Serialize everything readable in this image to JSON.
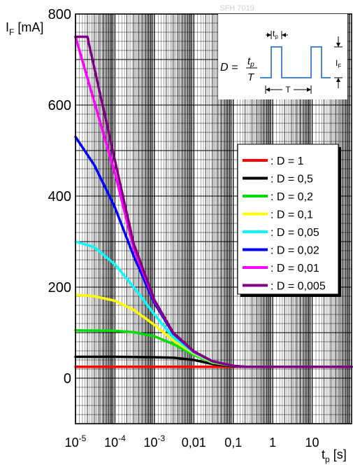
{
  "chart_data": {
    "type": "line",
    "watermark": "SFH 7019",
    "ylabel": {
      "main": "I",
      "sub": "F",
      "unit": " [mA]"
    },
    "xlabel": {
      "main": "t",
      "sub": "p",
      "unit": " [s]"
    },
    "x_scale": "log",
    "xlim": [
      1e-05,
      100
    ],
    "ylim": [
      -100,
      800
    ],
    "y_ticks": [
      "0",
      "200",
      "400",
      "600",
      "800"
    ],
    "x_ticks": [
      {
        "value": 1e-05,
        "base": "10",
        "exp": "-5"
      },
      {
        "value": 0.0001,
        "base": "10",
        "exp": "-4"
      },
      {
        "value": 0.001,
        "base": "10",
        "exp": "-3"
      },
      {
        "value": 0.01,
        "label": "0,01"
      },
      {
        "value": 0.1,
        "label": "0,1"
      },
      {
        "value": 1,
        "label": "1"
      },
      {
        "value": 10,
        "label": "10"
      }
    ],
    "grid": true,
    "legend_position": "right",
    "inset": {
      "formula_lhs": "D =",
      "numerator": "t",
      "numerator_sub": "p",
      "denominator": "T",
      "tp_label": "t",
      "tp_label_sub": "p",
      "period_label": "T",
      "amplitude_label": "I",
      "amplitude_label_sub": "F"
    },
    "series": [
      {
        "name": ": D = 1",
        "color": "#ff0000",
        "points": [
          [
            1e-05,
            25
          ],
          [
            0.001,
            25
          ],
          [
            0.1,
            25
          ],
          [
            100,
            25
          ]
        ]
      },
      {
        "name": ": D = 0,5",
        "color": "#000000",
        "points": [
          [
            1e-05,
            47
          ],
          [
            0.0001,
            47
          ],
          [
            0.001,
            46
          ],
          [
            0.003,
            45
          ],
          [
            0.01,
            40
          ],
          [
            0.03,
            31
          ],
          [
            0.1,
            26
          ],
          [
            0.2,
            25
          ],
          [
            100,
            25
          ]
        ]
      },
      {
        "name": ": D = 0,2",
        "color": "#00dd00",
        "points": [
          [
            1e-05,
            105
          ],
          [
            0.0001,
            104
          ],
          [
            0.0003,
            101
          ],
          [
            0.001,
            92
          ],
          [
            0.003,
            75
          ],
          [
            0.01,
            51
          ],
          [
            0.03,
            34
          ],
          [
            0.1,
            27
          ],
          [
            0.2,
            25
          ],
          [
            100,
            25
          ]
        ]
      },
      {
        "name": ": D = 0,1",
        "color": "#ffff00",
        "points": [
          [
            1e-05,
            183
          ],
          [
            3e-05,
            180
          ],
          [
            0.0001,
            170
          ],
          [
            0.0003,
            150
          ],
          [
            0.001,
            117
          ],
          [
            0.003,
            83
          ],
          [
            0.01,
            54
          ],
          [
            0.03,
            35
          ],
          [
            0.1,
            27
          ],
          [
            0.2,
            25
          ],
          [
            100,
            25
          ]
        ]
      },
      {
        "name": ": D = 0,05",
        "color": "#00ffff",
        "points": [
          [
            1e-05,
            300
          ],
          [
            3e-05,
            288
          ],
          [
            0.0001,
            250
          ],
          [
            0.0003,
            200
          ],
          [
            0.001,
            140
          ],
          [
            0.003,
            90
          ],
          [
            0.01,
            56
          ],
          [
            0.03,
            36
          ],
          [
            0.1,
            27
          ],
          [
            0.2,
            25
          ],
          [
            100,
            25
          ]
        ]
      },
      {
        "name": ": D = 0,02",
        "color": "#0000ff",
        "points": [
          [
            1e-05,
            530
          ],
          [
            3e-05,
            468
          ],
          [
            0.0001,
            375
          ],
          [
            0.0003,
            268
          ],
          [
            0.001,
            165
          ],
          [
            0.003,
            98
          ],
          [
            0.01,
            58
          ],
          [
            0.03,
            37
          ],
          [
            0.1,
            27
          ],
          [
            0.2,
            25
          ],
          [
            100,
            25
          ]
        ]
      },
      {
        "name": ": D = 0,01",
        "color": "#ff00ff",
        "points": [
          [
            1e-05,
            750
          ],
          [
            0.0001,
            450
          ],
          [
            0.0003,
            285
          ],
          [
            0.001,
            170
          ],
          [
            0.003,
            100
          ],
          [
            0.01,
            58
          ],
          [
            0.03,
            37
          ],
          [
            0.1,
            27
          ],
          [
            0.2,
            25
          ],
          [
            100,
            25
          ]
        ]
      },
      {
        "name": ": D = 0,005",
        "color": "#800080",
        "points": [
          [
            1e-05,
            750
          ],
          [
            2e-05,
            750
          ],
          [
            0.0001,
            478
          ],
          [
            0.0003,
            295
          ],
          [
            0.001,
            172
          ],
          [
            0.003,
            100
          ],
          [
            0.01,
            59
          ],
          [
            0.03,
            37
          ],
          [
            0.1,
            27
          ],
          [
            0.2,
            25
          ],
          [
            100,
            25
          ]
        ]
      }
    ]
  }
}
